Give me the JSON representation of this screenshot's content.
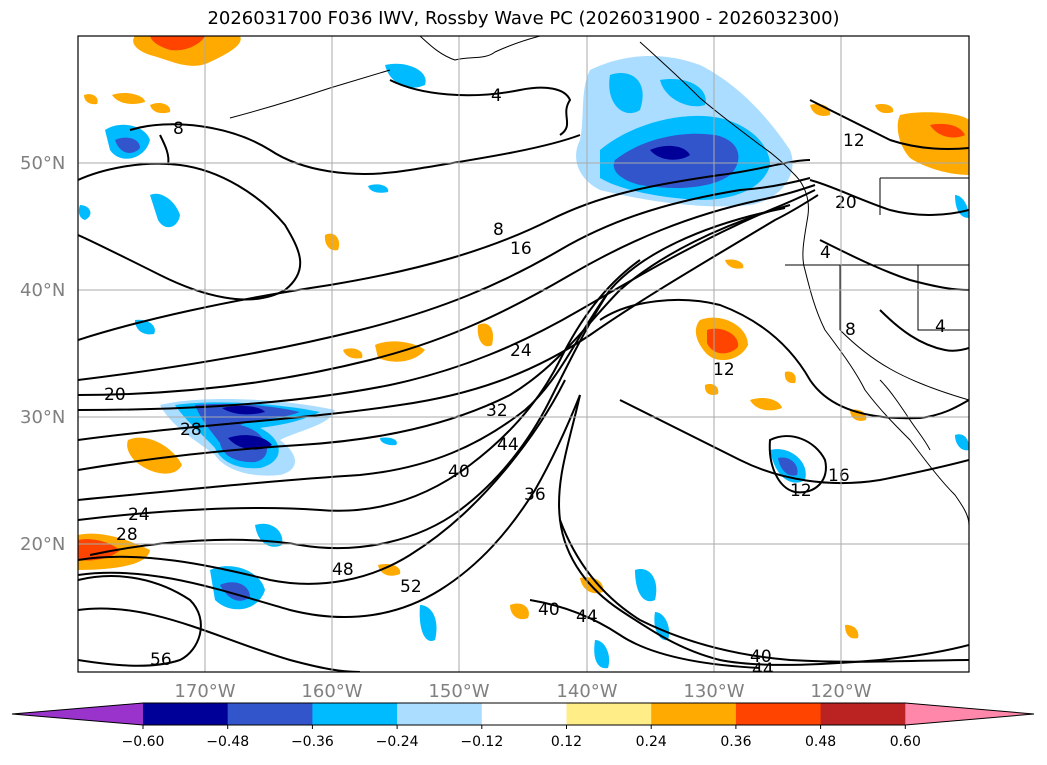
{
  "title": "2026031700 F036 IWV, Rossby Wave PC (2026031900 - 2026032300)",
  "lat_labels": [
    "50°N",
    "40°N",
    "30°N",
    "20°N"
  ],
  "lon_labels": [
    "170°W",
    "160°W",
    "150°W",
    "140°W",
    "130°W",
    "120°W"
  ],
  "contour_labels": [
    "4",
    "8",
    "8",
    "16",
    "20",
    "28",
    "24",
    "32",
    "40",
    "44",
    "36",
    "48",
    "52",
    "56",
    "40",
    "44",
    "12",
    "12",
    "16",
    "20",
    "12",
    "8",
    "4",
    "4",
    "24",
    "28",
    "40",
    "44"
  ],
  "colorbar": {
    "colors": [
      "#9933cc",
      "#000099",
      "#3355cc",
      "#00bbff",
      "#aaddff",
      "#ffffff",
      "#ffee88",
      "#ffaa00",
      "#ff4400",
      "#bb2222",
      "#ff88aa"
    ],
    "tick_labels": [
      "-0.60",
      "-0.48",
      "-0.36",
      "-0.24",
      "-0.12",
      "0.12",
      "0.24",
      "0.36",
      "0.48",
      "0.60"
    ]
  },
  "fill_colors": {
    "neg_light": "#aaddff",
    "neg_mid": "#00bbff",
    "neg_strong": "#3355cc",
    "neg_max": "#000099",
    "neg_extreme": "#9933cc",
    "pos_light": "#ffee88",
    "pos_mid": "#ffaa00",
    "pos_strong": "#ff4400",
    "pos_max": "#bb2222"
  }
}
